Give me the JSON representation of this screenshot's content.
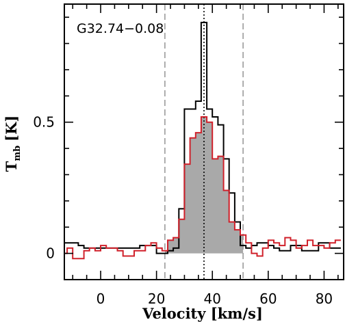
{
  "chart_data": {
    "type": "line",
    "title": "",
    "annotation": "G32.74−0.08",
    "xlabel": "Velocity [km/s]",
    "ylabel_main": "T",
    "ylabel_sub": "mb",
    "ylabel_unit": "[K]",
    "xlim": [
      -13,
      87
    ],
    "ylim": [
      -0.1,
      0.95
    ],
    "x_ticks": [
      0,
      20,
      40,
      60,
      80
    ],
    "y_ticks": [
      0,
      0.5
    ],
    "x_tick_labels": [
      "0",
      "20",
      "40",
      "60",
      "80"
    ],
    "y_tick_labels": [
      "0",
      "0.5"
    ],
    "grid": false,
    "step_width": 2,
    "vlines": [
      {
        "x": 23,
        "style": "dashed",
        "color": "#9a9a9a"
      },
      {
        "x": 37,
        "style": "dotted",
        "color": "#000000"
      },
      {
        "x": 51,
        "style": "dashed",
        "color": "#9a9a9a"
      }
    ],
    "series": [
      {
        "color": "#000000",
        "fill": "none",
        "x": [
          -13,
          -11,
          -9,
          -7,
          -5,
          -3,
          -1,
          1,
          3,
          5,
          7,
          9,
          11,
          13,
          15,
          17,
          19,
          21,
          23,
          25,
          27,
          29,
          31,
          33,
          35,
          37,
          39,
          41,
          43,
          45,
          47,
          49,
          51,
          53,
          55,
          57,
          59,
          61,
          63,
          65,
          67,
          69,
          71,
          73,
          75,
          77,
          79,
          81,
          83,
          85
        ],
        "y": [
          0.04,
          0.04,
          0.04,
          0.03,
          0.02,
          0.02,
          0.02,
          0.02,
          0.02,
          0.02,
          0.02,
          0.02,
          0.02,
          0.02,
          0.03,
          0.03,
          0.03,
          0.0,
          0.0,
          0.01,
          0.02,
          0.17,
          0.55,
          0.55,
          0.58,
          0.88,
          0.55,
          0.52,
          0.49,
          0.36,
          0.23,
          0.12,
          0.03,
          0.02,
          0.03,
          0.04,
          0.04,
          0.03,
          0.02,
          0.01,
          0.01,
          0.03,
          0.03,
          0.01,
          0.01,
          0.01,
          0.04,
          0.04,
          0.02,
          0.02
        ]
      },
      {
        "color": "#d0202a",
        "fill": "#a9a9a9",
        "x": [
          -13,
          -11,
          -9,
          -7,
          -5,
          -3,
          -1,
          1,
          3,
          5,
          7,
          9,
          11,
          13,
          15,
          17,
          19,
          21,
          23,
          25,
          27,
          29,
          31,
          33,
          35,
          37,
          39,
          41,
          43,
          45,
          47,
          49,
          51,
          53,
          55,
          57,
          59,
          61,
          63,
          65,
          67,
          69,
          71,
          73,
          75,
          77,
          79,
          81,
          83,
          85
        ],
        "y": [
          0.0,
          0.02,
          -0.02,
          -0.02,
          0.01,
          0.02,
          0.01,
          0.03,
          0.02,
          0.02,
          0.01,
          -0.01,
          -0.01,
          0.01,
          0.01,
          0.03,
          0.04,
          0.02,
          0.01,
          0.05,
          0.06,
          0.13,
          0.34,
          0.44,
          0.46,
          0.52,
          0.5,
          0.36,
          0.37,
          0.24,
          0.12,
          0.09,
          0.07,
          0.04,
          0.0,
          -0.01,
          0.02,
          0.05,
          0.04,
          0.03,
          0.06,
          0.05,
          0.02,
          0.03,
          0.05,
          0.03,
          0.03,
          0.02,
          0.04,
          0.05
        ]
      }
    ]
  }
}
